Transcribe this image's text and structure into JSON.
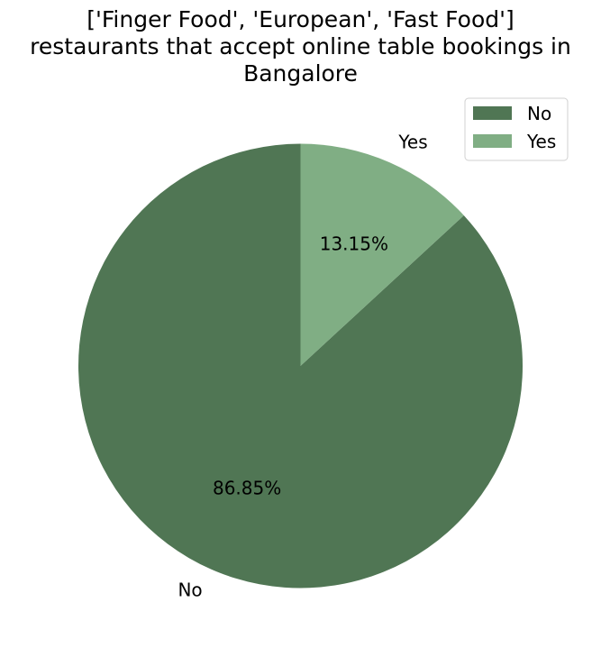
{
  "chart_data": {
    "type": "pie",
    "title_lines": [
      "['Finger Food', 'European', 'Fast Food']",
      "restaurants that accept online table bookings in",
      "Bangalore"
    ],
    "categories": [
      "No",
      "Yes"
    ],
    "values": [
      86.85,
      13.15
    ],
    "percent_labels": [
      "86.85%",
      "13.15%"
    ],
    "colors": [
      "#507654",
      "#80ae84"
    ],
    "legend": {
      "placement": "top-right",
      "entries": [
        "No",
        "Yes"
      ]
    },
    "start_angle_deg": 90,
    "direction": "counterclockwise"
  }
}
